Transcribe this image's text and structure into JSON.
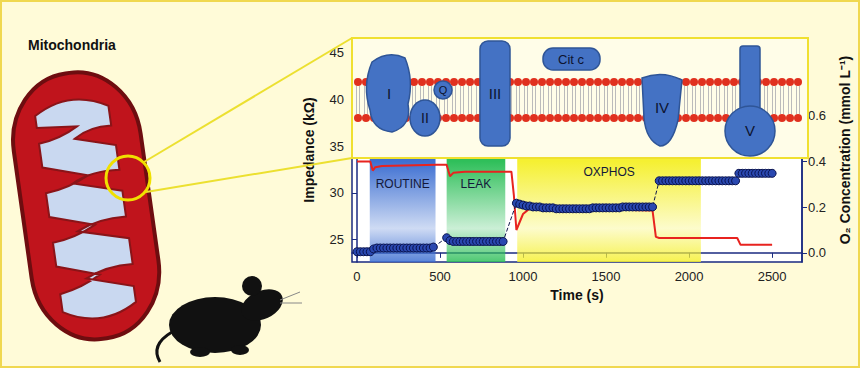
{
  "illustration": {
    "title": "Mitochondria",
    "membrane_labels": [
      "I",
      "II",
      "Q",
      "III",
      "Cit c",
      "IV",
      "V"
    ]
  },
  "chart_data": {
    "type": "line",
    "x_label": "Time (s)",
    "y_label": "Impedance (kΩ)",
    "y2_label": "O₂ Concentration (mmol L⁻¹)",
    "xlim": [
      -30,
      2680
    ],
    "xticks": [
      0,
      500,
      1000,
      1500,
      2000,
      2500
    ],
    "ylim": [
      22.6,
      46.6
    ],
    "yticks": [
      25,
      30,
      35,
      40,
      45
    ],
    "y2lim": [
      -0.04,
      0.94
    ],
    "y2ticks": [
      {
        "value": 0,
        "label": "0.0"
      },
      0.2,
      0.4,
      0.6
    ],
    "grid": false,
    "phases": [
      {
        "label": "ROUTINE",
        "start": 77,
        "end": 473,
        "color": "#3d6fd2"
      },
      {
        "label": "LEAK",
        "start": 540,
        "end": 893,
        "color": "#2fbf5a"
      },
      {
        "label": "OXPHOS",
        "start": 965,
        "end": 2071,
        "color": "#f5f032"
      }
    ],
    "series": [
      {
        "type": "line",
        "marker": "circle",
        "line_style": "dashed",
        "color": "#2a48b0",
        "x": [
          0,
          20,
          40,
          60,
          80,
          100,
          120,
          140,
          160,
          180,
          200,
          220,
          240,
          260,
          280,
          300,
          320,
          340,
          360,
          380,
          400,
          420,
          440,
          460,
          540,
          560,
          580,
          600,
          620,
          640,
          660,
          680,
          700,
          720,
          740,
          760,
          780,
          800,
          820,
          840,
          860,
          880,
          960,
          980,
          1000,
          1020,
          1040,
          1060,
          1080,
          1100,
          1120,
          1140,
          1160,
          1180,
          1200,
          1220,
          1240,
          1260,
          1280,
          1300,
          1320,
          1340,
          1360,
          1380,
          1400,
          1420,
          1440,
          1460,
          1480,
          1500,
          1520,
          1540,
          1560,
          1580,
          1600,
          1620,
          1640,
          1660,
          1680,
          1700,
          1720,
          1740,
          1760,
          1780,
          1820,
          1840,
          1860,
          1880,
          1900,
          1920,
          1940,
          1960,
          1980,
          2000,
          2020,
          2040,
          2060,
          2080,
          2100,
          2120,
          2140,
          2160,
          2180,
          2200,
          2220,
          2240,
          2260,
          2280,
          2300,
          2320,
          2340,
          2360,
          2380,
          2400,
          2420,
          2440,
          2460,
          2480,
          2500
        ],
        "values": [
          23.7,
          23.7,
          23.7,
          23.7,
          23.7,
          24.0,
          24.1,
          24.1,
          24.1,
          24.1,
          24.1,
          24.1,
          24.1,
          24.1,
          24.1,
          24.1,
          24.1,
          24.1,
          24.1,
          24.1,
          24.1,
          24.1,
          24.1,
          24.2,
          25.2,
          24.9,
          24.8,
          24.8,
          24.8,
          24.8,
          24.8,
          24.8,
          24.8,
          24.8,
          24.8,
          24.8,
          24.8,
          24.8,
          24.8,
          24.8,
          24.8,
          24.8,
          28.9,
          28.8,
          28.7,
          28.6,
          28.6,
          28.5,
          28.5,
          28.5,
          28.4,
          28.4,
          28.4,
          28.4,
          28.3,
          28.3,
          28.3,
          28.3,
          28.3,
          28.3,
          28.3,
          28.3,
          28.3,
          28.3,
          28.3,
          28.4,
          28.4,
          28.4,
          28.4,
          28.4,
          28.4,
          28.4,
          28.4,
          28.4,
          28.5,
          28.5,
          28.5,
          28.5,
          28.5,
          28.5,
          28.5,
          28.5,
          28.5,
          28.5,
          31.3,
          31.3,
          31.3,
          31.3,
          31.3,
          31.3,
          31.3,
          31.3,
          31.3,
          31.3,
          31.3,
          31.3,
          31.3,
          31.3,
          31.3,
          31.3,
          31.3,
          31.3,
          31.3,
          31.3,
          31.3,
          31.3,
          31.3,
          31.3,
          32.1,
          32.1,
          32.1,
          32.1,
          32.1,
          32.1,
          32.1,
          32.1,
          32.1,
          32.1,
          32.1
        ]
      },
      {
        "type": "line",
        "axis": "y2",
        "marker": "none",
        "line_style": "solid",
        "color": "#e8231f",
        "x": [
          0,
          80,
          95,
          110,
          150,
          480,
          540,
          560,
          580,
          650,
          930,
          945,
          960,
          1000,
          1050,
          1200,
          1500,
          1780,
          1800,
          1820,
          2290,
          2310,
          2500
        ],
        "values": [
          0.4,
          0.4,
          0.36,
          0.375,
          0.38,
          0.385,
          0.385,
          0.335,
          0.35,
          0.355,
          0.355,
          0.25,
          0.1,
          0.17,
          0.2,
          0.2,
          0.19,
          0.185,
          0.07,
          0.065,
          0.065,
          0.035,
          0.035
        ]
      }
    ]
  }
}
